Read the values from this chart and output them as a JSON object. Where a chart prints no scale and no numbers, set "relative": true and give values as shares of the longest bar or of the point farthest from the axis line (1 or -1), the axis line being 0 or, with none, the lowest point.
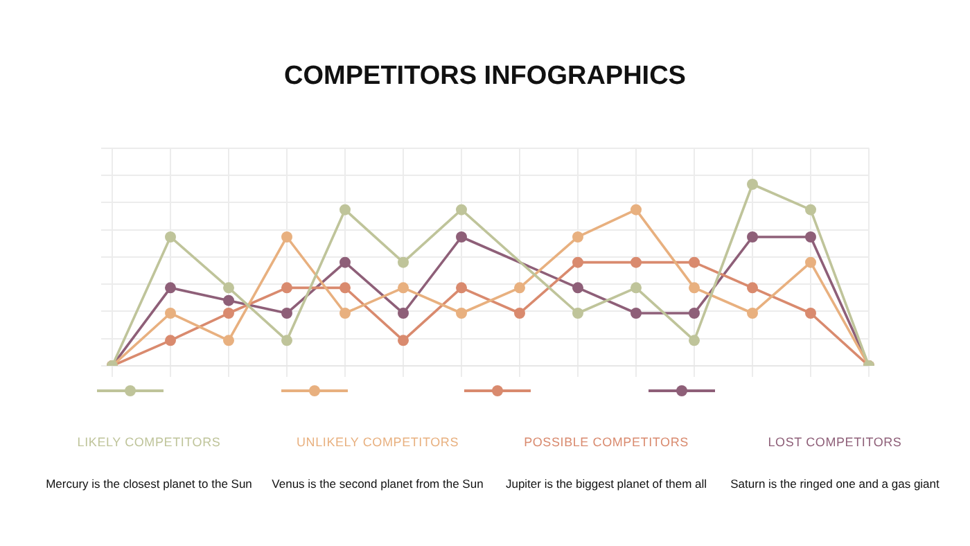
{
  "chart_data": {
    "type": "line",
    "title": "COMPETITORS INFOGRAPHICS",
    "relative": true,
    "categories": [
      null,
      null,
      null,
      null,
      null,
      null,
      null,
      null,
      null,
      null,
      null,
      null,
      null,
      null
    ],
    "series": [
      {
        "name": "LIKELY COMPETITORS",
        "color": "#bfc49a",
        "values": [
          0,
          0.71,
          0.43,
          0.14,
          0.86,
          0.57,
          0.86,
          null,
          0.29,
          0.43,
          0.14,
          1,
          0.86,
          0
        ]
      },
      {
        "name": "UNLIKELY COMPETITORS",
        "color": "#e8b07f",
        "values": [
          0,
          0.29,
          0.14,
          0.71,
          0.29,
          0.43,
          0.29,
          0.43,
          0.71,
          0.86,
          0.43,
          0.29,
          0.57,
          0
        ]
      },
      {
        "name": "POSSIBLE COMPETITORS",
        "color": "#d98a6e",
        "values": [
          0,
          0.14,
          0.29,
          0.43,
          0.43,
          0.14,
          0.43,
          0.29,
          0.57,
          0.57,
          0.57,
          0.43,
          0.29,
          0
        ]
      },
      {
        "name": "LOST COMPETITORS",
        "color": "#8e5f78",
        "values": [
          0,
          0.43,
          0.36,
          0.29,
          0.57,
          0.29,
          0.71,
          null,
          0.43,
          0.29,
          0.29,
          0.71,
          0.71,
          0
        ]
      }
    ],
    "annotations": [
      "Mercury is the closest planet to the Sun",
      "Venus is the second planet from the Sun",
      "Jupiter is the biggest planet of them all",
      "Saturn is the ringed one and a gas giant"
    ],
    "grid": true,
    "legend": "bottom",
    "marker": "circle",
    "line_style": "solid"
  }
}
